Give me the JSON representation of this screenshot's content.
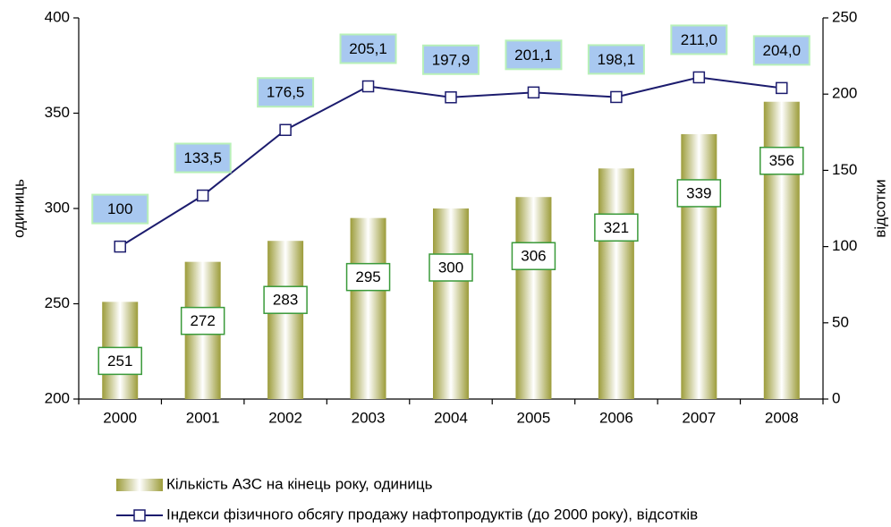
{
  "chart_data": {
    "type": "bar_line",
    "categories": [
      "2000",
      "2001",
      "2002",
      "2003",
      "2004",
      "2005",
      "2006",
      "2007",
      "2008"
    ],
    "series": [
      {
        "name": "Кількість АЗС на кінець року, одиниць",
        "type": "bar",
        "color": "#9c9c3a",
        "values": [
          251,
          272,
          283,
          295,
          300,
          306,
          321,
          339,
          356
        ]
      },
      {
        "name": "Індекси фізичного обсягу продажу нафтопродуктів (до 2000 року), відсотків",
        "type": "line",
        "axis": "y2",
        "color": "#1c1c6e",
        "values": [
          100,
          133.5,
          176.5,
          205.1,
          197.9,
          201.1,
          198.1,
          211.0,
          204.0
        ],
        "value_labels": [
          "100",
          "133,5",
          "176,5",
          "205,1",
          "197,9",
          "201,1",
          "198,1",
          "211,0",
          "204,0"
        ]
      }
    ],
    "ylabel": "одиниць",
    "y2label": "відсотки",
    "ylim": [
      200,
      400
    ],
    "yticks": [
      200,
      250,
      300,
      350,
      400
    ],
    "y2lim": [
      0,
      250
    ],
    "y2ticks": [
      0,
      50,
      100,
      150,
      200,
      250
    ]
  }
}
